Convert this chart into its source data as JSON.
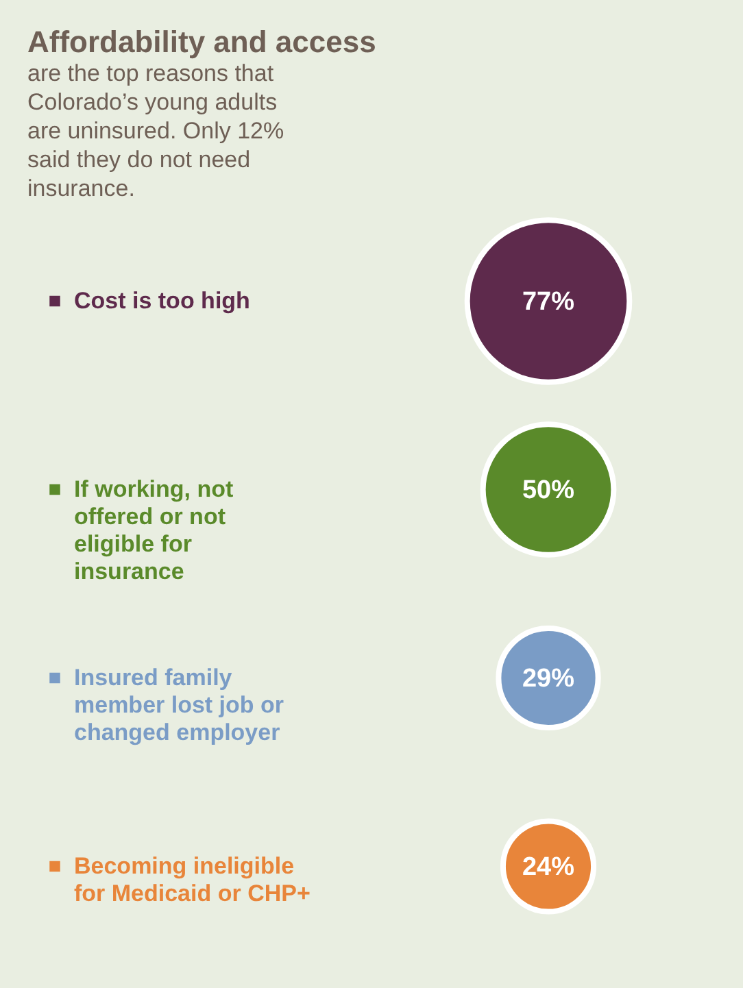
{
  "chart_data": {
    "type": "other",
    "title": "Affordability and access",
    "subtitle": "are the top reasons that Colorado’s young adults are uninsured. Only 12% said they do not need insurance.",
    "categories": [
      "Cost is too high",
      "If working, not offered or not eligible for insurance",
      "Insured family member lost job or changed employer",
      "Becoming ineligible for Medicaid or CHP+"
    ],
    "values": [
      77,
      50,
      29,
      24
    ],
    "value_labels": [
      "77%",
      "50%",
      "29%",
      "24%"
    ],
    "colors": [
      "#5e2a4c",
      "#5a8a2a",
      "#7a9cc6",
      "#e8853a"
    ]
  }
}
